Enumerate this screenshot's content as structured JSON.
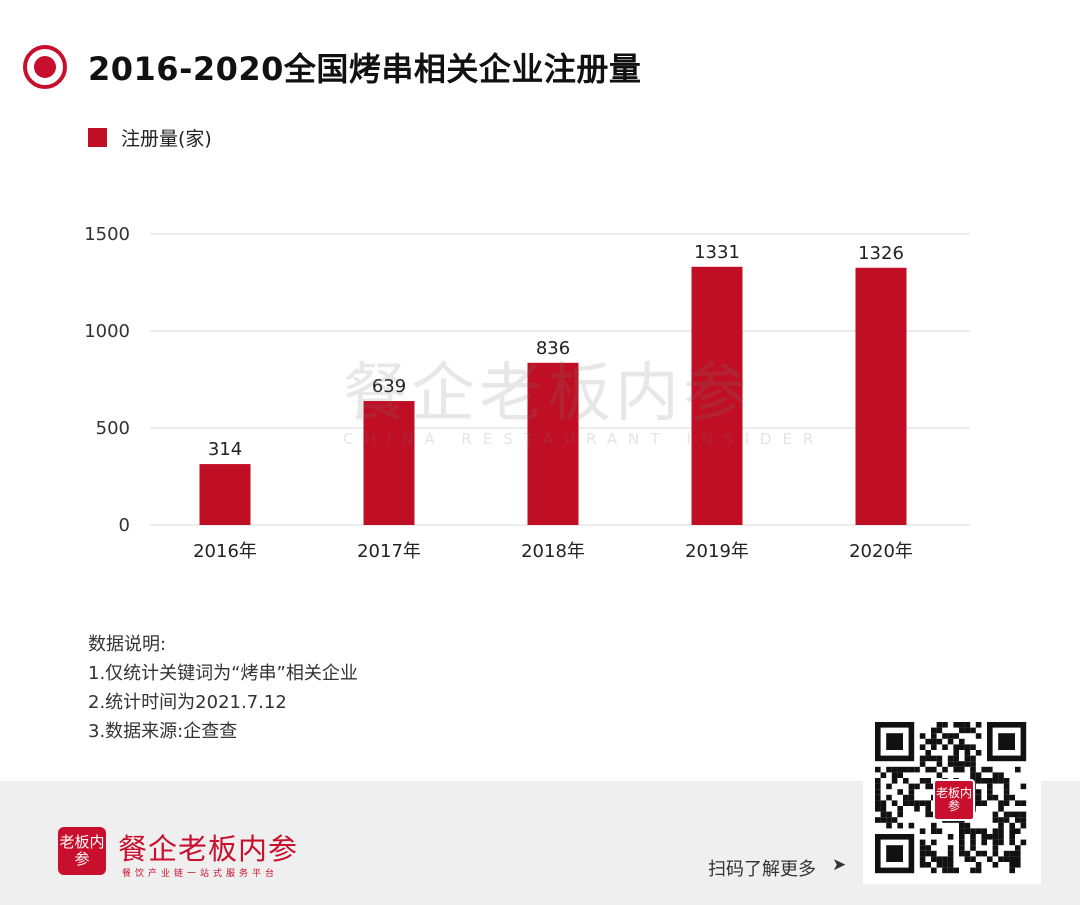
{
  "header": {
    "title": "2016-2020全国烤串相关企业注册量"
  },
  "legend": {
    "label": "注册量(家)",
    "color": "#c00f24"
  },
  "chart_data": {
    "type": "bar",
    "categories": [
      "2016年",
      "2017年",
      "2018年",
      "2019年",
      "2020年"
    ],
    "series": [
      {
        "name": "注册量(家)",
        "values": [
          314,
          639,
          836,
          1331,
          1326
        ]
      }
    ],
    "ylim": [
      0,
      1500
    ],
    "yticks": [
      0,
      500,
      1000,
      1500
    ],
    "grid": true,
    "bar_color": "#c00f24"
  },
  "watermark": {
    "text": "餐企老板内参",
    "sub": "CHINA RESTAURANT INSIDER"
  },
  "notes": {
    "heading": "数据说明:",
    "lines": [
      "1.仅统计关键词为“烤串”相关企业",
      "2.统计时间为2021.7.12",
      "3.数据来源:企查查"
    ]
  },
  "footer": {
    "logo_text": "老板内参",
    "brand_name": "餐企老板内参",
    "tagline": "餐饮产业链一站式服务平台",
    "scan_hint": "扫码了解更多",
    "scan_arrow": "➤",
    "qr_logo_text": "老板内参"
  },
  "colors": {
    "accent": "#c8102e",
    "footer_bg": "#efefef"
  }
}
